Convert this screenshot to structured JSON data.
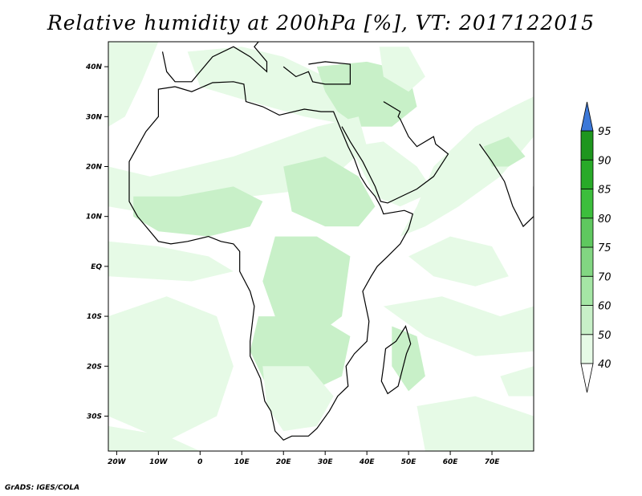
{
  "title": "Relative humidity at 200hPa [%], VT: 2017122015",
  "credit": "GrADS: IGES/COLA",
  "colors": {
    "background": "#ffffff",
    "land_outline": "#000000",
    "level_40_50": "#e6fae6",
    "level_50_60": "#c8f0c8",
    "level_60_70": "#a5e6a5",
    "level_70_75": "#82d682",
    "level_75_80": "#5fc85f",
    "level_80_85": "#3cbe3c",
    "level_85_90": "#28aa28",
    "level_90_95": "#1e961e",
    "level_above_95": "#3c78d8"
  },
  "chart_data": {
    "type": "heatmap",
    "title": "Relative humidity at 200hPa [%], VT: 2017122015",
    "xlim": [
      -22,
      80
    ],
    "ylim": [
      -37,
      45
    ],
    "x_ticks": [
      {
        "value": -20,
        "label": "20W"
      },
      {
        "value": -10,
        "label": "10W"
      },
      {
        "value": 0,
        "label": "0"
      },
      {
        "value": 10,
        "label": "10E"
      },
      {
        "value": 20,
        "label": "20E"
      },
      {
        "value": 30,
        "label": "30E"
      },
      {
        "value": 40,
        "label": "40E"
      },
      {
        "value": 50,
        "label": "50E"
      },
      {
        "value": 60,
        "label": "60E"
      },
      {
        "value": 70,
        "label": "70E"
      }
    ],
    "y_ticks": [
      {
        "value": 40,
        "label": "40N"
      },
      {
        "value": 30,
        "label": "30N"
      },
      {
        "value": 20,
        "label": "20N"
      },
      {
        "value": 10,
        "label": "10N"
      },
      {
        "value": 0,
        "label": "EQ"
      },
      {
        "value": -10,
        "label": "10S"
      },
      {
        "value": -20,
        "label": "20S"
      },
      {
        "value": -30,
        "label": "30S"
      }
    ],
    "colorbar": {
      "levels": [
        40,
        50,
        60,
        70,
        75,
        80,
        85,
        90,
        95
      ],
      "labels": [
        "40",
        "50",
        "60",
        "70",
        "75",
        "80",
        "85",
        "90",
        "95"
      ],
      "triangle_bottom": "white",
      "triangle_top": "blue"
    },
    "humid_regions": [
      {
        "name": "north-atlantic",
        "level": 50,
        "pts": [
          [
            -22,
            45
          ],
          [
            -10,
            45
          ],
          [
            -14,
            37
          ],
          [
            -18,
            30
          ],
          [
            -22,
            28
          ]
        ]
      },
      {
        "name": "mediterranean-band",
        "level": 50,
        "pts": [
          [
            -3,
            43
          ],
          [
            10,
            44
          ],
          [
            20,
            42
          ],
          [
            30,
            38
          ],
          [
            40,
            36
          ],
          [
            44,
            33
          ],
          [
            38,
            28
          ],
          [
            25,
            30
          ],
          [
            12,
            33
          ],
          [
            0,
            36
          ]
        ]
      },
      {
        "name": "levant-anatolia",
        "level": 60,
        "pts": [
          [
            28,
            40
          ],
          [
            40,
            41
          ],
          [
            50,
            39
          ],
          [
            52,
            32
          ],
          [
            46,
            28
          ],
          [
            38,
            28
          ],
          [
            33,
            31
          ],
          [
            30,
            35
          ]
        ]
      },
      {
        "name": "black-sea-arc",
        "level": 50,
        "pts": [
          [
            43,
            44
          ],
          [
            50,
            44
          ],
          [
            54,
            38
          ],
          [
            50,
            35
          ],
          [
            44,
            38
          ]
        ]
      },
      {
        "name": "nile-saharan-band",
        "level": 50,
        "pts": [
          [
            -22,
            20
          ],
          [
            -12,
            18
          ],
          [
            -2,
            20
          ],
          [
            8,
            22
          ],
          [
            18,
            25
          ],
          [
            28,
            28
          ],
          [
            38,
            30
          ],
          [
            40,
            24
          ],
          [
            32,
            18
          ],
          [
            22,
            15
          ],
          [
            12,
            14
          ],
          [
            2,
            12
          ],
          [
            -8,
            10
          ],
          [
            -22,
            12
          ]
        ]
      },
      {
        "name": "sudan-ethiopia",
        "level": 60,
        "pts": [
          [
            20,
            20
          ],
          [
            30,
            22
          ],
          [
            38,
            18
          ],
          [
            42,
            12
          ],
          [
            38,
            8
          ],
          [
            30,
            8
          ],
          [
            22,
            11
          ]
        ]
      },
      {
        "name": "west-africa",
        "level": 60,
        "pts": [
          [
            -16,
            14
          ],
          [
            -5,
            14
          ],
          [
            8,
            16
          ],
          [
            15,
            13
          ],
          [
            12,
            8
          ],
          [
            2,
            6
          ],
          [
            -10,
            7
          ],
          [
            -16,
            10
          ]
        ]
      },
      {
        "name": "guinea-ocean",
        "level": 50,
        "pts": [
          [
            -22,
            5
          ],
          [
            -10,
            4
          ],
          [
            2,
            2
          ],
          [
            8,
            -1
          ],
          [
            -2,
            -3
          ],
          [
            -22,
            -2
          ]
        ]
      },
      {
        "name": "congo-east",
        "level": 60,
        "pts": [
          [
            18,
            6
          ],
          [
            28,
            6
          ],
          [
            36,
            2
          ],
          [
            34,
            -10
          ],
          [
            26,
            -15
          ],
          [
            18,
            -10
          ],
          [
            15,
            -3
          ]
        ]
      },
      {
        "name": "south-atlantic-swirl",
        "level": 50,
        "pts": [
          [
            -22,
            -10
          ],
          [
            -8,
            -6
          ],
          [
            4,
            -10
          ],
          [
            8,
            -20
          ],
          [
            4,
            -30
          ],
          [
            -8,
            -35
          ],
          [
            -22,
            -30
          ]
        ]
      },
      {
        "name": "south-atlantic-south",
        "level": 50,
        "pts": [
          [
            -22,
            -32
          ],
          [
            -8,
            -34
          ],
          [
            0,
            -37
          ],
          [
            -22,
            -37
          ]
        ]
      },
      {
        "name": "angola-zambia",
        "level": 60,
        "pts": [
          [
            14,
            -10
          ],
          [
            28,
            -10
          ],
          [
            36,
            -14
          ],
          [
            34,
            -22
          ],
          [
            24,
            -26
          ],
          [
            16,
            -24
          ],
          [
            12,
            -17
          ]
        ]
      },
      {
        "name": "kalahari",
        "level": 50,
        "pts": [
          [
            15,
            -20
          ],
          [
            26,
            -20
          ],
          [
            32,
            -26
          ],
          [
            28,
            -32
          ],
          [
            20,
            -33
          ],
          [
            16,
            -28
          ]
        ]
      },
      {
        "name": "red-sea-arabia",
        "level": 50,
        "pts": [
          [
            36,
            24
          ],
          [
            44,
            25
          ],
          [
            52,
            20
          ],
          [
            56,
            15
          ],
          [
            48,
            12
          ],
          [
            42,
            14
          ]
        ]
      },
      {
        "name": "arabian-sea-streak",
        "level": 50,
        "pts": [
          [
            56,
            20
          ],
          [
            66,
            28
          ],
          [
            75,
            32
          ],
          [
            80,
            34
          ],
          [
            80,
            26
          ],
          [
            72,
            18
          ],
          [
            62,
            12
          ],
          [
            54,
            8
          ],
          [
            48,
            6
          ],
          [
            52,
            12
          ]
        ]
      },
      {
        "name": "india-pocket",
        "level": 60,
        "pts": [
          [
            68,
            24
          ],
          [
            74,
            26
          ],
          [
            78,
            22
          ],
          [
            74,
            20
          ],
          [
            70,
            20
          ]
        ]
      },
      {
        "name": "horn-indian-ocean",
        "level": 50,
        "pts": [
          [
            50,
            2
          ],
          [
            60,
            6
          ],
          [
            70,
            4
          ],
          [
            74,
            -2
          ],
          [
            66,
            -4
          ],
          [
            56,
            -2
          ]
        ]
      },
      {
        "name": "indian-ocean-mid",
        "level": 50,
        "pts": [
          [
            44,
            -8
          ],
          [
            58,
            -6
          ],
          [
            72,
            -10
          ],
          [
            80,
            -8
          ],
          [
            80,
            -17
          ],
          [
            66,
            -18
          ],
          [
            54,
            -14
          ]
        ]
      },
      {
        "name": "madagascar-ocean",
        "level": 60,
        "pts": [
          [
            46,
            -12
          ],
          [
            52,
            -14
          ],
          [
            54,
            -22
          ],
          [
            50,
            -25
          ],
          [
            46,
            -20
          ]
        ]
      },
      {
        "name": "southeast-ocean",
        "level": 50,
        "pts": [
          [
            52,
            -28
          ],
          [
            66,
            -26
          ],
          [
            80,
            -30
          ],
          [
            80,
            -37
          ],
          [
            54,
            -37
          ]
        ]
      },
      {
        "name": "east-indian-ocean",
        "level": 50,
        "pts": [
          [
            72,
            -22
          ],
          [
            80,
            -20
          ],
          [
            80,
            -26
          ],
          [
            74,
            -26
          ]
        ]
      }
    ]
  }
}
